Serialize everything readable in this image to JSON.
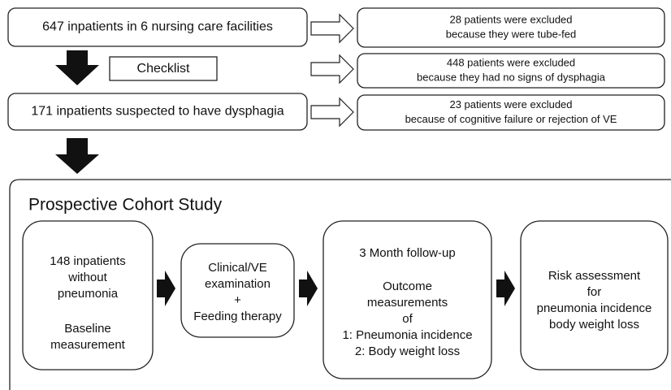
{
  "screening": [
    {
      "text": "647 inpatients in 6 nursing care facilities"
    },
    {
      "text": "171 inpatients suspected  to have dysphagia"
    }
  ],
  "checklist": "Checklist",
  "exclusions": [
    {
      "lines": [
        "28 patients were excluded",
        "because they were tube-fed"
      ]
    },
    {
      "lines": [
        "448 patients were excluded",
        "because they had no signs of dysphagia"
      ]
    },
    {
      "lines": [
        "23 patients were excluded",
        "because of cognitive failure or rejection of VE"
      ]
    }
  ],
  "cohort": {
    "title": "Prospective Cohort Study",
    "steps": [
      {
        "lines": [
          "148 inpatients",
          "without",
          "pneumonia",
          "Baseline",
          "measurement"
        ]
      },
      {
        "lines": [
          "Clinical/VE",
          "examination",
          "+",
          "Feeding therapy"
        ]
      },
      {
        "lines": [
          "3 Month follow-up",
          "Outcome",
          "measurements",
          "of",
          "1: Pneumonia incidence",
          "2: Body weight loss"
        ]
      },
      {
        "lines": [
          "Risk assessment",
          "for",
          "pneumonia incidence",
          "body weight loss"
        ]
      }
    ]
  }
}
